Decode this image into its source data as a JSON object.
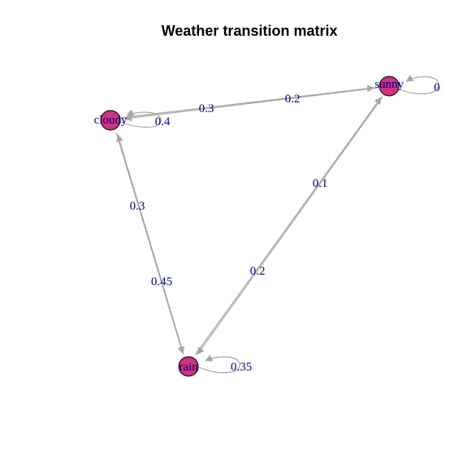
{
  "title": "Weather transition matrix",
  "colors": {
    "node_fill": "#cc3380",
    "node_stroke": "#000000",
    "edge": "#a6a6a6",
    "label": "#000080"
  },
  "nodes": [
    {
      "id": "sunny",
      "label": "sunny"
    },
    {
      "id": "cloudy",
      "label": "cloudy"
    },
    {
      "id": "rain",
      "label": "rain"
    }
  ],
  "edges": [
    {
      "from": "sunny",
      "to": "cloudy",
      "label": "0.3"
    },
    {
      "from": "cloudy",
      "to": "sunny",
      "label": "0.2"
    },
    {
      "from": "sunny",
      "to": "rain",
      "label": "0.2"
    },
    {
      "from": "rain",
      "to": "sunny",
      "label": "0.1"
    },
    {
      "from": "cloudy",
      "to": "rain",
      "label": "0.45"
    },
    {
      "from": "rain",
      "to": "cloudy",
      "label": "0.3"
    }
  ],
  "self_loops": [
    {
      "node": "cloudy",
      "label": "0.4"
    },
    {
      "node": "sunny",
      "label": "0"
    },
    {
      "node": "rain",
      "label": "0.35"
    }
  ]
}
